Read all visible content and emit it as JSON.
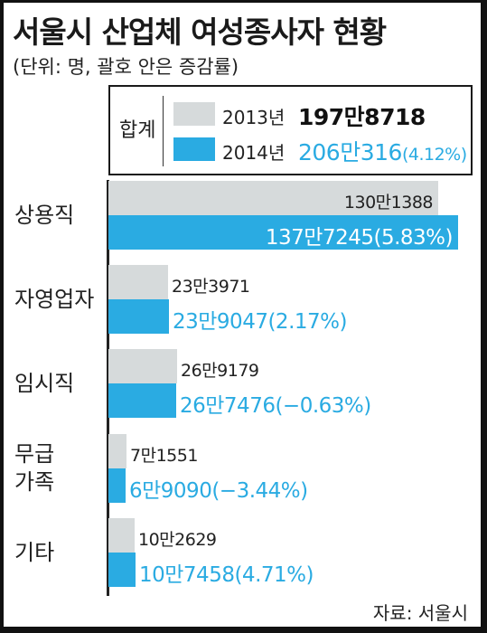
{
  "title": "서울시 산업체 여성종사자 현황",
  "subtitle": "(단위: 명, 괄호 안은 증감률)",
  "colors": {
    "y2013": "#d6dadb",
    "y2014": "#2aabe2",
    "text": "#222222"
  },
  "legend": {
    "total_label": "합계",
    "items": [
      {
        "year": "2013년",
        "value_text": "197만8718",
        "color": "#d6dadb"
      },
      {
        "year": "2014년",
        "value_text": "206만316",
        "change_text": "(4.12%)",
        "color": "#2aabe2"
      }
    ]
  },
  "chart_data": {
    "type": "bar",
    "orientation": "horizontal",
    "categories": [
      "상용직",
      "자영업자",
      "임시직",
      "무급 가족",
      "기타"
    ],
    "series": [
      {
        "name": "2013년",
        "values": [
          1301388,
          233971,
          269179,
          71551,
          102629
        ],
        "labels": [
          "130만1388",
          "23만3971",
          "26만9179",
          "7만1551",
          "10만2629"
        ]
      },
      {
        "name": "2014년",
        "values": [
          1377245,
          239047,
          267476,
          69090,
          107458
        ],
        "labels": [
          "137만7245(5.83%)",
          "23만9047(2.17%)",
          "26만7476(−0.63%)",
          "6만9090(−3.44%)",
          "10만7458(4.71%)"
        ]
      }
    ],
    "unit": "명",
    "xlim": [
      0,
      1410000
    ]
  },
  "source": "자료: 서울시"
}
